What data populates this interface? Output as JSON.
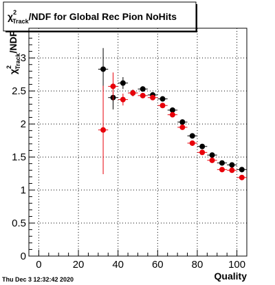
{
  "chart_data": {
    "type": "scatter",
    "title": "/NDF for Global Rec Pion NoHits",
    "title_chi": "χ",
    "title_sup": "2",
    "title_sub": "Track",
    "ylabel": "/NDF",
    "ylabel_chi": "χ",
    "ylabel_sup": "2",
    "ylabel_sub": "Track",
    "xlabel": "Quality",
    "xlim": [
      -5,
      105
    ],
    "ylim": [
      0,
      3.45
    ],
    "xticks": [
      0,
      20,
      40,
      60,
      80,
      100
    ],
    "yticks": [
      0,
      0.5,
      1,
      1.5,
      2,
      2.5,
      3
    ],
    "ytick_labels": [
      "0",
      "0.5",
      "1",
      "1.5",
      "2",
      "2.5",
      "3"
    ],
    "grid": true,
    "timestamp": "Thu Dec  3 12:32:42 2020",
    "series": [
      {
        "color": "#000000",
        "x": [
          32.5,
          37.5,
          42.5,
          47.5,
          52.5,
          57.5,
          62.5,
          67.5,
          72.5,
          77.5,
          82.5,
          87.5,
          92.5,
          97.5,
          102.5
        ],
        "y": [
          2.83,
          2.4,
          2.62,
          2.47,
          2.53,
          2.44,
          2.38,
          2.21,
          2.03,
          1.82,
          1.66,
          1.53,
          1.41,
          1.38,
          1.31
        ],
        "yerr": [
          0.32,
          0.18,
          0.09,
          0.05,
          0.04,
          0.03,
          0.03,
          0.03,
          0.03,
          0.03,
          0.03,
          0.03,
          0.03,
          0.04,
          0.04
        ]
      },
      {
        "color": "#e8000a",
        "x": [
          32.5,
          37.5,
          42.5,
          47.5,
          52.5,
          57.5,
          62.5,
          67.5,
          72.5,
          77.5,
          82.5,
          87.5,
          92.5,
          97.5,
          102.5
        ],
        "y": [
          1.91,
          2.57,
          2.37,
          2.47,
          2.43,
          2.4,
          2.28,
          2.14,
          1.95,
          1.71,
          1.57,
          1.45,
          1.31,
          1.3,
          1.19
        ],
        "yerr": [
          0.67,
          0.21,
          0.09,
          0.05,
          0.03,
          0.03,
          0.03,
          0.03,
          0.03,
          0.03,
          0.03,
          0.03,
          0.03,
          0.04,
          0.04
        ]
      }
    ]
  }
}
